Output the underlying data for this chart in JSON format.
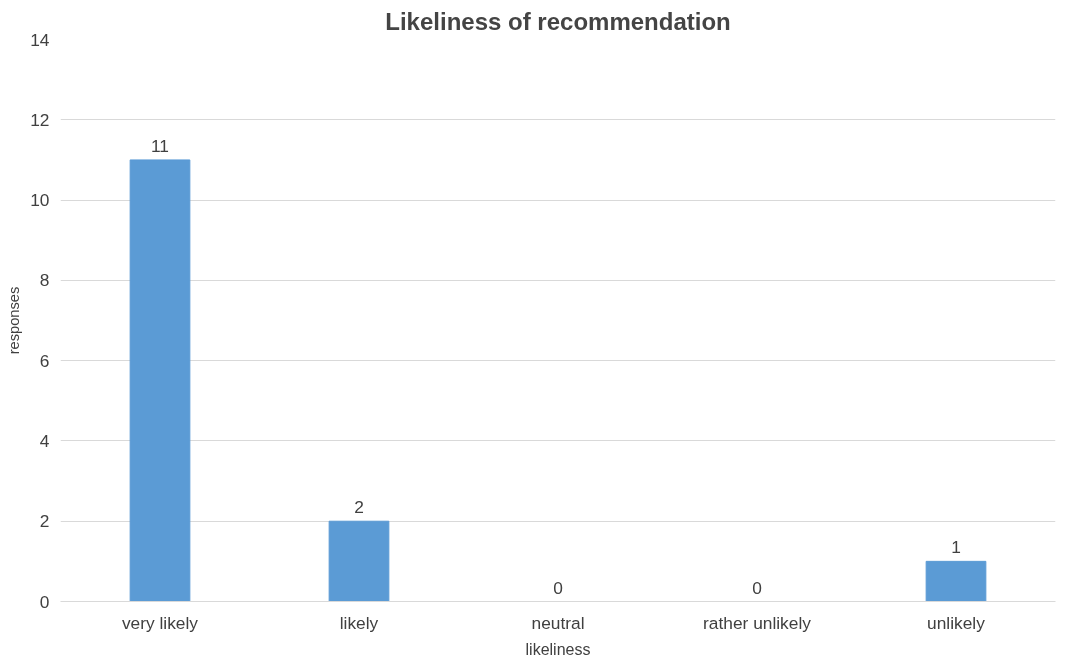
{
  "chart_data": {
    "type": "bar",
    "title": "Likeliness of recommendation",
    "xlabel": "likeliness",
    "ylabel": "responses",
    "categories": [
      "very likely",
      "likely",
      "neutral",
      "rather unlikely",
      "unlikely"
    ],
    "values": [
      11,
      2,
      0,
      0,
      1
    ],
    "color": "#5b9bd5",
    "ylim": [
      0,
      14
    ],
    "yticks": [
      0,
      2,
      4,
      6,
      8,
      10,
      12,
      14
    ],
    "grid": "y",
    "data_labels": true
  }
}
